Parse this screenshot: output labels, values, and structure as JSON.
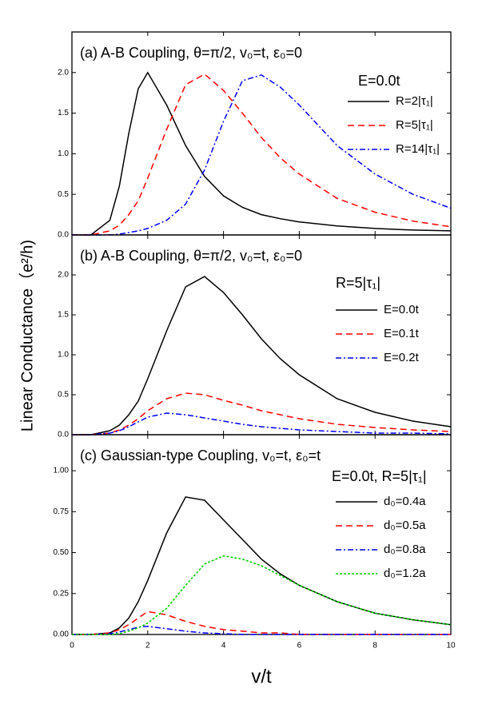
{
  "chart_data": [
    {
      "type": "line",
      "title": "(a) A-B Coupling, θ=π/2, v₀=t, ε₀=0",
      "legend_title": "E=0.0t",
      "x": [
        0,
        0.5,
        1,
        1.25,
        1.5,
        1.75,
        2,
        2.5,
        3,
        3.5,
        4,
        4.5,
        5,
        5.5,
        6,
        7,
        8,
        9,
        10
      ],
      "xlim": [
        0,
        10
      ],
      "ylim": [
        0,
        2.5
      ],
      "yticks": [
        {
          "value": 0,
          "label": "0.0"
        },
        {
          "value": 0.5,
          "label": "0.5"
        },
        {
          "value": 1,
          "label": "1.0"
        },
        {
          "value": 1.5,
          "label": "1.5"
        },
        {
          "value": 2,
          "label": "2.0"
        }
      ],
      "series": [
        {
          "name": "R=2|τ₁|",
          "color": "#000000",
          "linestyle": "solid",
          "values": [
            0,
            0,
            0.18,
            0.6,
            1.25,
            1.8,
            2.0,
            1.6,
            1.1,
            0.72,
            0.48,
            0.34,
            0.25,
            0.2,
            0.16,
            0.11,
            0.08,
            0.06,
            0.05
          ]
        },
        {
          "name": "R=5|τ₁|",
          "color": "#ff0000",
          "linestyle": "dash",
          "values": [
            0,
            0,
            0.05,
            0.12,
            0.25,
            0.42,
            0.7,
            1.3,
            1.85,
            1.98,
            1.78,
            1.5,
            1.2,
            0.95,
            0.75,
            0.45,
            0.28,
            0.17,
            0.1
          ]
        },
        {
          "name": "R=14|τ₁|",
          "color": "#0000ff",
          "linestyle": "dashdot",
          "values": [
            0,
            0,
            0,
            0.01,
            0.03,
            0.05,
            0.08,
            0.18,
            0.38,
            0.8,
            1.4,
            1.9,
            1.97,
            1.82,
            1.6,
            1.1,
            0.75,
            0.5,
            0.33
          ]
        }
      ]
    },
    {
      "type": "line",
      "title": "(b) A-B Coupling, θ=π/2, v₀=t, ε₀=0",
      "legend_title": "R=5|τ₁|",
      "ylabel": "Linear Conductance（e²/h)",
      "x": [
        0,
        0.5,
        1,
        1.25,
        1.5,
        1.75,
        2,
        2.5,
        3,
        3.5,
        4,
        4.5,
        5,
        5.5,
        6,
        7,
        8,
        9,
        10
      ],
      "xlim": [
        0,
        10
      ],
      "ylim": [
        0,
        2.5
      ],
      "yticks": [
        {
          "value": 0,
          "label": "0.0"
        },
        {
          "value": 0.5,
          "label": "0.5"
        },
        {
          "value": 1,
          "label": "1.0"
        },
        {
          "value": 1.5,
          "label": "1.5"
        },
        {
          "value": 2,
          "label": "2.0"
        }
      ],
      "series": [
        {
          "name": "E=0.0t",
          "color": "#000000",
          "linestyle": "solid",
          "values": [
            0,
            0,
            0.05,
            0.12,
            0.25,
            0.42,
            0.7,
            1.3,
            1.85,
            1.98,
            1.78,
            1.5,
            1.2,
            0.95,
            0.75,
            0.45,
            0.28,
            0.17,
            0.1
          ]
        },
        {
          "name": "E=0.1t",
          "color": "#ff0000",
          "linestyle": "dash",
          "values": [
            0,
            0,
            0.02,
            0.06,
            0.12,
            0.2,
            0.3,
            0.45,
            0.52,
            0.5,
            0.43,
            0.37,
            0.3,
            0.25,
            0.2,
            0.13,
            0.09,
            0.06,
            0.04
          ]
        },
        {
          "name": "E=0.2t",
          "color": "#0000ff",
          "linestyle": "dashdot",
          "values": [
            0,
            0,
            0.02,
            0.05,
            0.1,
            0.16,
            0.22,
            0.27,
            0.25,
            0.21,
            0.17,
            0.13,
            0.1,
            0.08,
            0.06,
            0.04,
            0.02,
            0.02,
            0.01
          ]
        }
      ]
    },
    {
      "type": "line",
      "title": "(c) Gaussian-type Coupling, v₀=t, ε₀=t",
      "legend_title": "E=0.0t, R=5|τ₁|",
      "xlabel": "v/t",
      "x": [
        0,
        0.5,
        1,
        1.25,
        1.5,
        1.75,
        2,
        2.5,
        3,
        3.5,
        4,
        4.5,
        5,
        5.5,
        6,
        7,
        8,
        9,
        10
      ],
      "xlim": [
        0,
        10
      ],
      "ylim": [
        0,
        1.22
      ],
      "xticks": [
        0,
        2,
        4,
        6,
        8,
        10
      ],
      "yticks": [
        {
          "value": 0,
          "label": "0.00"
        },
        {
          "value": 0.25,
          "label": "0.25"
        },
        {
          "value": 0.5,
          "label": "0.50"
        },
        {
          "value": 0.75,
          "label": "0.75"
        },
        {
          "value": 1,
          "label": "1.00"
        }
      ],
      "series": [
        {
          "name": "d₀=0.4a",
          "color": "#000000",
          "linestyle": "solid",
          "values": [
            0,
            0,
            0.01,
            0.04,
            0.1,
            0.2,
            0.33,
            0.62,
            0.84,
            0.82,
            0.7,
            0.58,
            0.46,
            0.37,
            0.3,
            0.2,
            0.13,
            0.09,
            0.06
          ]
        },
        {
          "name": "d₀=0.5a",
          "color": "#ff0000",
          "linestyle": "dash",
          "values": [
            0,
            0,
            0.01,
            0.03,
            0.06,
            0.1,
            0.14,
            0.12,
            0.08,
            0.05,
            0.03,
            0.02,
            0.01,
            0.01,
            0,
            0,
            0,
            0,
            0
          ]
        },
        {
          "name": "d₀=0.8a",
          "color": "#0000ff",
          "linestyle": "dashdot",
          "values": [
            0,
            0,
            0.005,
            0.015,
            0.03,
            0.045,
            0.05,
            0.035,
            0.02,
            0.01,
            0.005,
            0,
            0,
            0,
            0,
            0,
            0,
            0,
            0
          ]
        },
        {
          "name": "d₀=1.2a",
          "color": "#00cc00",
          "linestyle": "dot",
          "values": [
            0,
            0,
            0,
            0.005,
            0.02,
            0.04,
            0.07,
            0.16,
            0.3,
            0.43,
            0.48,
            0.46,
            0.42,
            0.36,
            0.3,
            0.2,
            0.13,
            0.09,
            0.06
          ]
        }
      ]
    }
  ]
}
